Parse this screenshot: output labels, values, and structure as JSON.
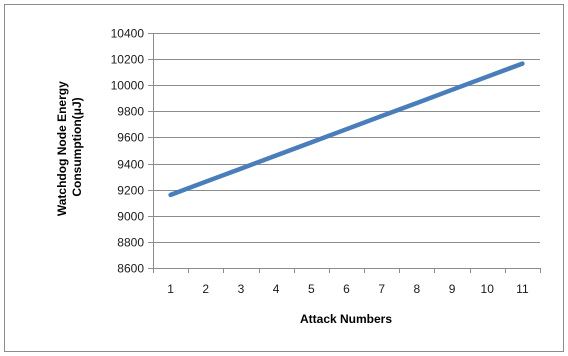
{
  "chart_data": {
    "type": "line",
    "title": "",
    "xlabel": "Attack Numbers",
    "ylabel": "Watchdog Node Energy Consumption(μJ)",
    "ylabel_lines": [
      "Watchdog Node Energy",
      "Consumption(μJ)"
    ],
    "x": [
      1,
      2,
      3,
      4,
      5,
      6,
      7,
      8,
      9,
      10,
      11
    ],
    "x_tick_labels": [
      "1",
      "2",
      "3",
      "4",
      "5",
      "6",
      "7",
      "8",
      "9",
      "10",
      "11"
    ],
    "y_ticks": [
      8600,
      8800,
      9000,
      9200,
      9400,
      9600,
      9800,
      10000,
      10200,
      10400
    ],
    "ylim": [
      8600,
      10400
    ],
    "grid": "horizontal",
    "legend": "none",
    "series": [
      {
        "values": [
          9160,
          9261,
          9361,
          9462,
          9562,
          9663,
          9764,
          9864,
          9965,
          10065,
          10166
        ],
        "color": "#4A7EBB"
      }
    ]
  },
  "style": {
    "line_color": "#4A7EBB",
    "grid_color": "#8c8c8c",
    "axis_color": "#8c8c8c",
    "frame_color": "#8c8c8c"
  }
}
